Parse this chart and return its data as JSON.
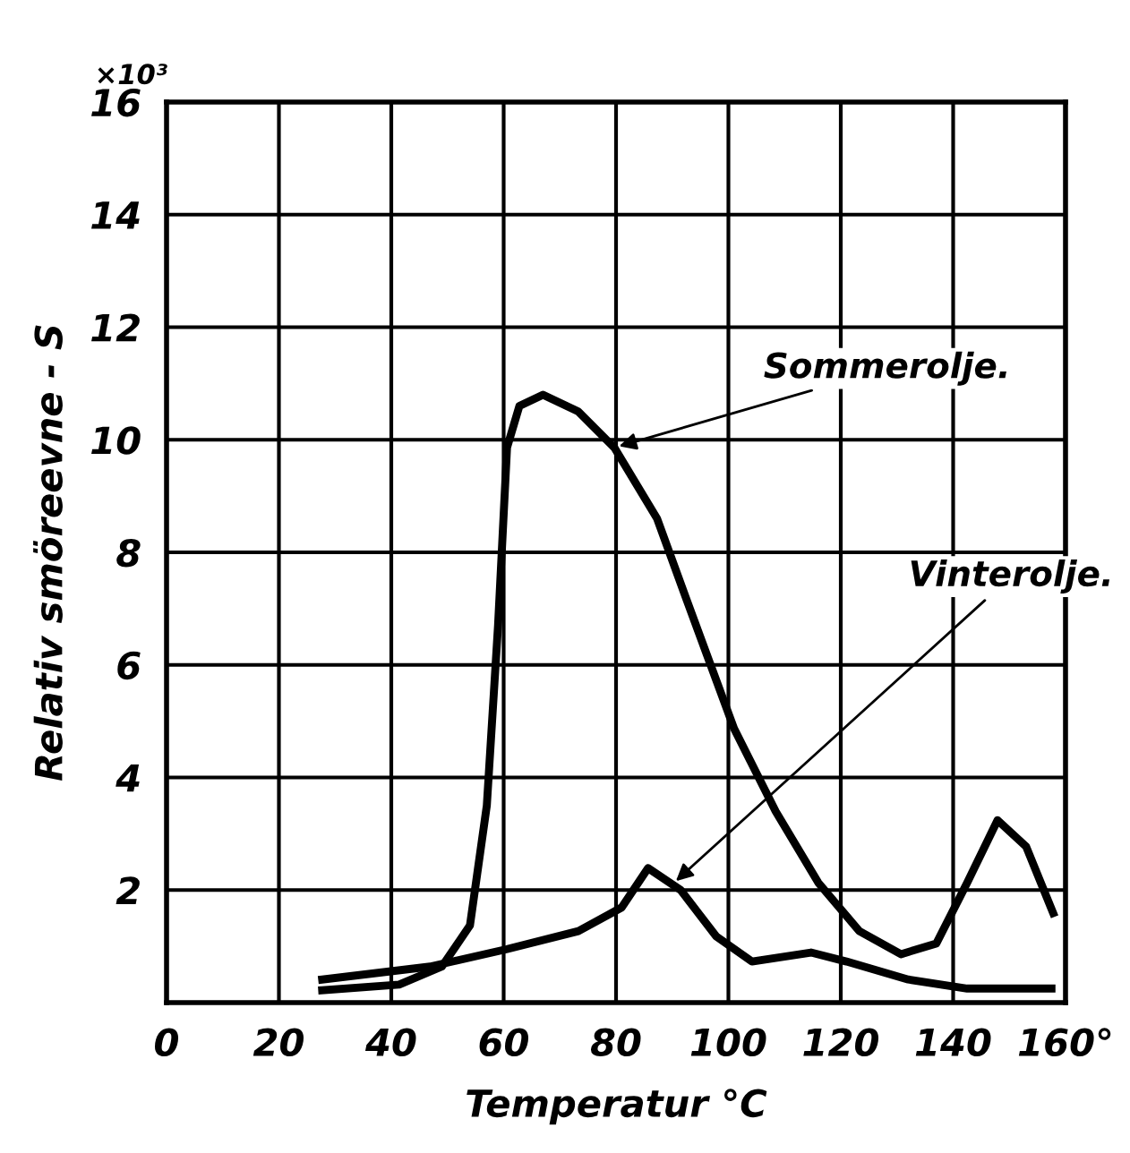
{
  "chart_data": {
    "type": "line",
    "xlabel": "Temperatur °C",
    "ylabel": "Relativ smöreevne - S",
    "xlim": [
      0,
      160
    ],
    "ylim": [
      0,
      16
    ],
    "xticks": [
      0,
      20,
      40,
      60,
      80,
      100,
      120,
      140,
      {
        "value": 160,
        "label": "160°"
      }
    ],
    "yticks": [
      {
        "value": 0,
        "label": null
      },
      2,
      4,
      6,
      8,
      10,
      12,
      14,
      16
    ],
    "grid": true,
    "legend": false,
    "marker": "none",
    "line_style": "solid",
    "annotations": [
      "×10³",
      {
        "text": "Sommerolje.",
        "x": 79.7,
        "y": 9.86
      },
      {
        "text": "Vinterolje.",
        "x": 90,
        "y": 2.1
      }
    ],
    "series": [
      {
        "color": "#000000",
        "x": [
          27.7,
          41.4,
          49,
          54,
          57,
          59,
          60.6,
          62.8,
          67,
          73.3,
          79.7,
          87.3,
          92.4,
          101,
          108.4,
          116,
          123.3,
          130.7,
          137,
          142.5,
          147.9,
          153,
          157.8
        ],
        "values": [
          0.22,
          0.32,
          0.64,
          1.37,
          3.5,
          6.7,
          9.86,
          10.6,
          10.8,
          10.5,
          9.86,
          8.6,
          7.2,
          4.87,
          3.4,
          2.13,
          1.27,
          0.86,
          1.05,
          2.13,
          3.24,
          2.77,
          1.59
        ]
      },
      {
        "color": "#000000",
        "x": [
          27.7,
          46.9,
          60.6,
          73.3,
          81,
          85.7,
          91.5,
          97.8,
          104.2,
          114.7,
          121,
          132,
          142.5,
          157.5
        ],
        "values": [
          0.41,
          0.64,
          0.95,
          1.27,
          1.69,
          2.39,
          2.0,
          1.18,
          0.73,
          0.89,
          0.73,
          0.41,
          0.25,
          0.25
        ]
      }
    ]
  }
}
